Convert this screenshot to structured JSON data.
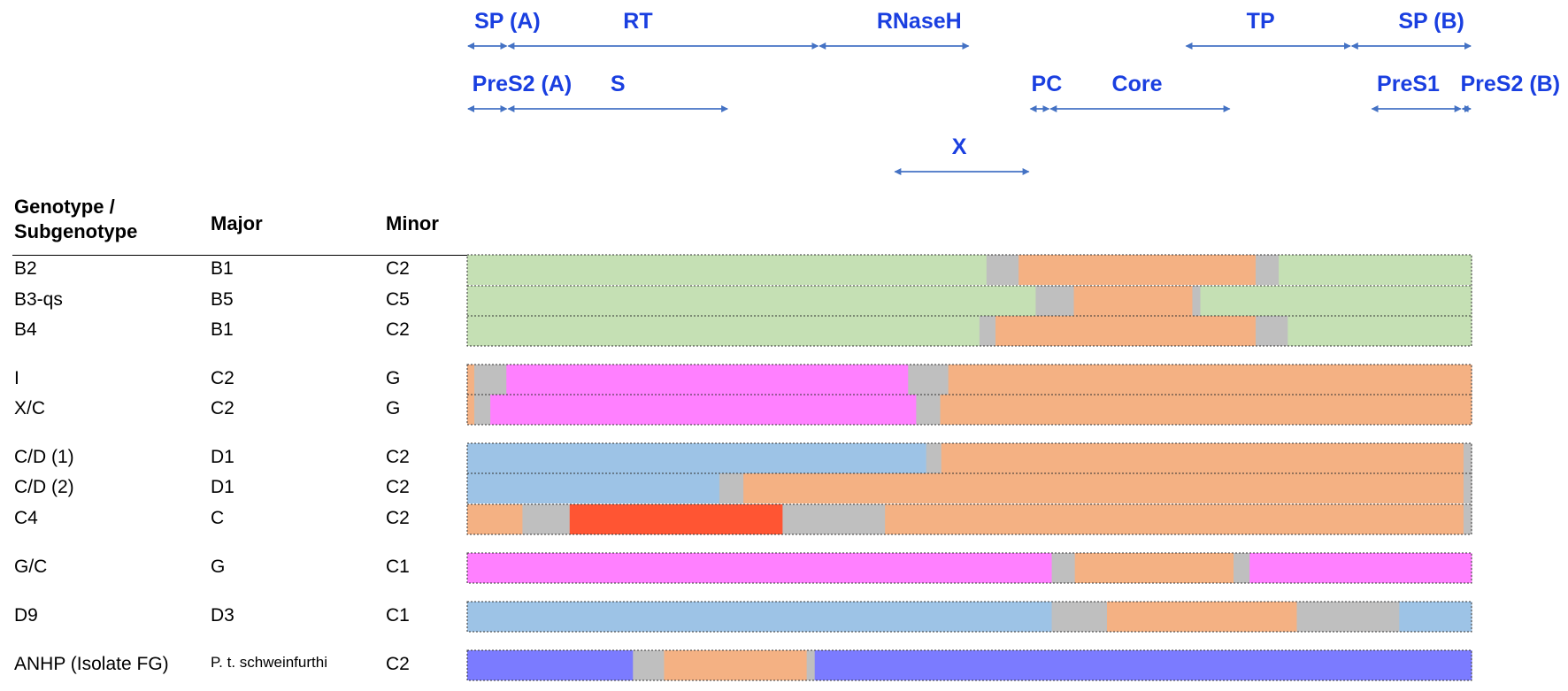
{
  "genes": [
    {
      "name": "SP (A)",
      "start": 0.0,
      "end": 0.04
    },
    {
      "name": "RT",
      "start": 0.04,
      "end": 0.35
    },
    {
      "name": "RNaseH",
      "start": 0.35,
      "end": 0.5
    },
    {
      "name": "TP",
      "start": 0.715,
      "end": 0.88
    },
    {
      "name": "SP (B)",
      "start": 0.88,
      "end": 1.0
    },
    {
      "name": "PreS2 (A)",
      "start": 0.0,
      "end": 0.04
    },
    {
      "name": "S",
      "start": 0.04,
      "end": 0.26
    },
    {
      "name": "PC",
      "start": 0.56,
      "end": 0.58
    },
    {
      "name": "Core",
      "start": 0.58,
      "end": 0.76
    },
    {
      "name": "PreS1",
      "start": 0.9,
      "end": 0.99
    },
    {
      "name": "PreS2 (B)",
      "start": 0.99,
      "end": 1.0
    },
    {
      "name": "X",
      "start": 0.425,
      "end": 0.56
    }
  ],
  "table": {
    "header": {
      "genotype": "Genotype /\nSubgenotype",
      "major": "Major",
      "minor": "Minor"
    },
    "rows": [
      {
        "genotype": "B2",
        "major": "B1",
        "minor": "C2",
        "group": 0,
        "segments": [
          {
            "c": "green",
            "f": 0.517
          },
          {
            "c": "grey",
            "f": 0.032
          },
          {
            "c": "orange",
            "f": 0.236
          },
          {
            "c": "grey",
            "f": 0.023
          },
          {
            "c": "green",
            "f": 0.192
          }
        ]
      },
      {
        "genotype": "B3-qs",
        "major": "B5",
        "minor": "C5",
        "group": 0,
        "segments": [
          {
            "c": "green",
            "f": 0.566
          },
          {
            "c": "grey",
            "f": 0.038
          },
          {
            "c": "orange",
            "f": 0.118
          },
          {
            "c": "grey",
            "f": 0.008
          },
          {
            "c": "green",
            "f": 0.27
          }
        ]
      },
      {
        "genotype": "B4",
        "major": "B1",
        "minor": "C2",
        "group": 0,
        "segments": [
          {
            "c": "green",
            "f": 0.51
          },
          {
            "c": "grey",
            "f": 0.016
          },
          {
            "c": "orange",
            "f": 0.259
          },
          {
            "c": "grey",
            "f": 0.032
          },
          {
            "c": "green",
            "f": 0.183
          }
        ]
      },
      {
        "genotype": "I",
        "major": "C2",
        "minor": "G",
        "group": 1,
        "segments": [
          {
            "c": "orange",
            "f": 0.007
          },
          {
            "c": "grey",
            "f": 0.032
          },
          {
            "c": "magenta",
            "f": 0.4
          },
          {
            "c": "grey",
            "f": 0.04
          },
          {
            "c": "orange",
            "f": 0.521
          }
        ]
      },
      {
        "genotype": "X/C",
        "major": "C2",
        "minor": "G",
        "group": 1,
        "segments": [
          {
            "c": "orange",
            "f": 0.007
          },
          {
            "c": "grey",
            "f": 0.016
          },
          {
            "c": "magenta",
            "f": 0.424
          },
          {
            "c": "grey",
            "f": 0.024
          },
          {
            "c": "orange",
            "f": 0.529
          }
        ]
      },
      {
        "genotype": "C/D (1)",
        "major": "D1",
        "minor": "C2",
        "group": 2,
        "segments": [
          {
            "c": "blue",
            "f": 0.457
          },
          {
            "c": "grey",
            "f": 0.015
          },
          {
            "c": "orange",
            "f": 0.52
          },
          {
            "c": "grey",
            "f": 0.008
          }
        ]
      },
      {
        "genotype": "C/D (2)",
        "major": "D1",
        "minor": "C2",
        "group": 2,
        "segments": [
          {
            "c": "blue",
            "f": 0.251
          },
          {
            "c": "grey",
            "f": 0.024
          },
          {
            "c": "orange",
            "f": 0.717
          },
          {
            "c": "grey",
            "f": 0.008
          }
        ]
      },
      {
        "genotype": "C4",
        "major": "C",
        "minor": "C2",
        "group": 2,
        "segments": [
          {
            "c": "orange",
            "f": 0.055
          },
          {
            "c": "grey",
            "f": 0.047
          },
          {
            "c": "red",
            "f": 0.212
          },
          {
            "c": "grey",
            "f": 0.102
          },
          {
            "c": "orange",
            "f": 0.576
          },
          {
            "c": "grey",
            "f": 0.008
          }
        ]
      },
      {
        "genotype": "G/C",
        "major": "G",
        "minor": "C1",
        "group": 3,
        "segments": [
          {
            "c": "magenta",
            "f": 0.582
          },
          {
            "c": "grey",
            "f": 0.023
          },
          {
            "c": "orange",
            "f": 0.158
          },
          {
            "c": "grey",
            "f": 0.016
          },
          {
            "c": "magenta",
            "f": 0.221
          }
        ]
      },
      {
        "genotype": "D9",
        "major": "D3",
        "minor": "C1",
        "group": 4,
        "segments": [
          {
            "c": "blue",
            "f": 0.582
          },
          {
            "c": "grey",
            "f": 0.055
          },
          {
            "c": "orange",
            "f": 0.189
          },
          {
            "c": "grey",
            "f": 0.102
          },
          {
            "c": "blue",
            "f": 0.072
          }
        ]
      },
      {
        "genotype": "ANHP (Isolate FG)",
        "major": "P. t. schweinfurthi",
        "minor": "C2",
        "group": 5,
        "segments": [
          {
            "c": "violet",
            "f": 0.165
          },
          {
            "c": "grey",
            "f": 0.031
          },
          {
            "c": "orange",
            "f": 0.142
          },
          {
            "c": "grey",
            "f": 0.008
          },
          {
            "c": "violet",
            "f": 0.654
          }
        ]
      }
    ]
  },
  "colors": {
    "green": "#c5e0b4",
    "grey": "#bfbfbf",
    "orange": "#f4b183",
    "magenta": "#ff80ff",
    "blue": "#9dc3e6",
    "red": "#ff5533",
    "violet": "#7b7bff",
    "arrow": "#4472c4",
    "label": "#1a3fe0"
  }
}
